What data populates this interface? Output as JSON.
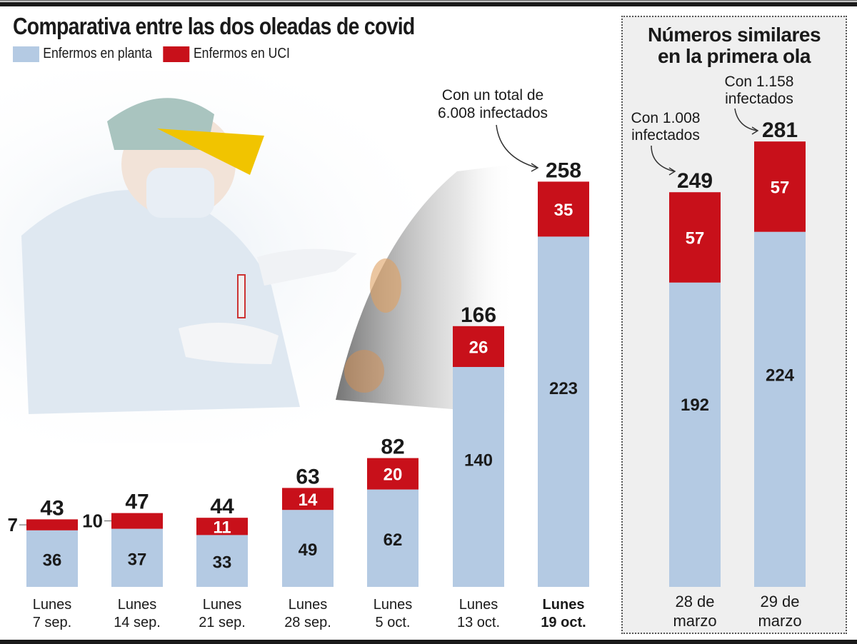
{
  "chart_data": [
    {
      "type": "bar",
      "stacked": true,
      "title": "Comparativa entre las dos oleadas de covid",
      "legend": [
        "Enfermos en planta",
        "Enfermos en UCI"
      ],
      "legend_position": "top-left",
      "categories": [
        [
          "Lunes",
          "7 sep."
        ],
        [
          "Lunes",
          "14 sep."
        ],
        [
          "Lunes",
          "21 sep."
        ],
        [
          "Lunes",
          "28 sep."
        ],
        [
          "Lunes",
          "5 oct."
        ],
        [
          "Lunes",
          "13 oct."
        ],
        [
          "Lunes",
          "19 oct."
        ]
      ],
      "series": [
        {
          "name": "Enfermos en planta",
          "values": [
            36,
            37,
            33,
            49,
            62,
            140,
            223
          ]
        },
        {
          "name": "Enfermos en UCI",
          "values": [
            7,
            10,
            11,
            14,
            20,
            26,
            35
          ]
        }
      ],
      "totals": [
        43,
        47,
        44,
        63,
        82,
        166,
        258
      ],
      "highlight_index": 6,
      "annotation": {
        "lines": [
          "Con un total de",
          "6.008 infectados"
        ],
        "target_index": 6
      }
    },
    {
      "type": "bar",
      "stacked": true,
      "title": [
        "Números similares",
        "en la primera ola"
      ],
      "categories": [
        [
          "28 de",
          "marzo"
        ],
        [
          "29 de",
          "marzo"
        ]
      ],
      "series": [
        {
          "name": "Enfermos en planta",
          "values": [
            192,
            224
          ]
        },
        {
          "name": "Enfermos en UCI",
          "values": [
            57,
            57
          ]
        }
      ],
      "totals": [
        249,
        281
      ],
      "annotations": [
        {
          "lines": [
            "Con 1.008",
            "infectados"
          ],
          "target_index": 0
        },
        {
          "lines": [
            "Con 1.158",
            "infectados"
          ],
          "target_index": 1
        }
      ]
    }
  ],
  "colors": {
    "planta": "#b4cae3",
    "uci": "#c8101a",
    "text": "#1a1a1a",
    "panel_bg": "#efefef"
  }
}
